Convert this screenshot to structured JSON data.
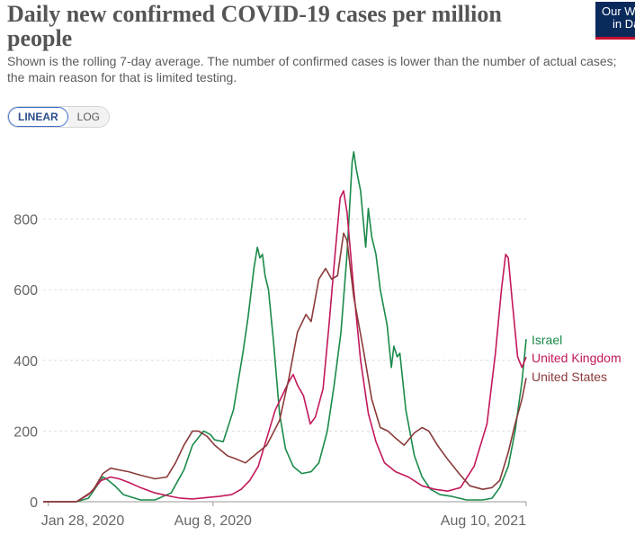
{
  "title": "Daily new confirmed COVID-19 cases per million people",
  "subtitle": "Shown is the rolling 7-day average. The number of confirmed cases is lower than the number of actual cases; the main reason for that is limited testing.",
  "logo": {
    "line1": "Our World",
    "line2": "in Data",
    "color": "#0a2a5c",
    "accent": "#c8102e"
  },
  "scale_toggle": {
    "linear_label": "LINEAR",
    "log_label": "LOG",
    "selected": "LINEAR"
  },
  "chart_data": {
    "type": "line",
    "title": "Daily new confirmed COVID-19 cases per million people",
    "ylim": [
      0,
      1000
    ],
    "y_ticks": [
      0,
      200,
      400,
      600,
      800
    ],
    "y_tick_labels": [
      "0",
      "200",
      "400",
      "600",
      "800"
    ],
    "x_ticks": [
      {
        "x": "2020-01-28",
        "label": "Jan 28, 2020"
      },
      {
        "x": "2020-08-08",
        "label": "Aug 8, 2020"
      },
      {
        "x": "2021-08-10",
        "label": "Aug 10, 2021"
      }
    ],
    "x_range": [
      "2020-01-22",
      "2021-08-10"
    ],
    "grid": "horizontal dashed",
    "legend": "right, inline labels at line ends",
    "series": [
      {
        "name": "Israel",
        "color": "#1a8a4a",
        "points": [
          [
            "2020-01-22",
            0
          ],
          [
            "2020-03-01",
            0
          ],
          [
            "2020-03-15",
            10
          ],
          [
            "2020-03-25",
            45
          ],
          [
            "2020-04-01",
            70
          ],
          [
            "2020-04-05",
            65
          ],
          [
            "2020-04-15",
            45
          ],
          [
            "2020-04-25",
            20
          ],
          [
            "2020-05-15",
            5
          ],
          [
            "2020-06-01",
            5
          ],
          [
            "2020-06-20",
            25
          ],
          [
            "2020-07-05",
            90
          ],
          [
            "2020-07-15",
            160
          ],
          [
            "2020-07-28",
            200
          ],
          [
            "2020-08-05",
            190
          ],
          [
            "2020-08-10",
            175
          ],
          [
            "2020-08-20",
            170
          ],
          [
            "2020-09-01",
            260
          ],
          [
            "2020-09-12",
            420
          ],
          [
            "2020-09-18",
            520
          ],
          [
            "2020-09-25",
            660
          ],
          [
            "2020-09-29",
            720
          ],
          [
            "2020-10-02",
            690
          ],
          [
            "2020-10-05",
            700
          ],
          [
            "2020-10-08",
            640
          ],
          [
            "2020-10-12",
            600
          ],
          [
            "2020-10-18",
            450
          ],
          [
            "2020-10-25",
            250
          ],
          [
            "2020-11-01",
            150
          ],
          [
            "2020-11-10",
            100
          ],
          [
            "2020-11-20",
            80
          ],
          [
            "2020-12-01",
            85
          ],
          [
            "2020-12-10",
            110
          ],
          [
            "2020-12-20",
            200
          ],
          [
            "2020-12-28",
            330
          ],
          [
            "2021-01-05",
            480
          ],
          [
            "2021-01-12",
            700
          ],
          [
            "2021-01-18",
            960
          ],
          [
            "2021-01-20",
            990
          ],
          [
            "2021-01-23",
            940
          ],
          [
            "2021-01-28",
            880
          ],
          [
            "2021-02-03",
            720
          ],
          [
            "2021-02-06",
            830
          ],
          [
            "2021-02-10",
            750
          ],
          [
            "2021-02-15",
            700
          ],
          [
            "2021-02-20",
            600
          ],
          [
            "2021-02-28",
            500
          ],
          [
            "2021-03-05",
            380
          ],
          [
            "2021-03-08",
            440
          ],
          [
            "2021-03-12",
            410
          ],
          [
            "2021-03-15",
            420
          ],
          [
            "2021-03-22",
            260
          ],
          [
            "2021-04-01",
            130
          ],
          [
            "2021-04-10",
            70
          ],
          [
            "2021-04-20",
            35
          ],
          [
            "2021-05-01",
            20
          ],
          [
            "2021-05-15",
            15
          ],
          [
            "2021-06-01",
            5
          ],
          [
            "2021-06-20",
            5
          ],
          [
            "2021-07-01",
            10
          ],
          [
            "2021-07-10",
            40
          ],
          [
            "2021-07-20",
            100
          ],
          [
            "2021-07-28",
            200
          ],
          [
            "2021-08-05",
            340
          ],
          [
            "2021-08-10",
            460
          ]
        ]
      },
      {
        "name": "United Kingdom",
        "color": "#c2185b",
        "points": [
          [
            "2020-01-22",
            0
          ],
          [
            "2020-03-01",
            0
          ],
          [
            "2020-03-15",
            20
          ],
          [
            "2020-03-30",
            60
          ],
          [
            "2020-04-10",
            70
          ],
          [
            "2020-04-20",
            65
          ],
          [
            "2020-05-01",
            55
          ],
          [
            "2020-05-15",
            40
          ],
          [
            "2020-06-01",
            25
          ],
          [
            "2020-06-20",
            15
          ],
          [
            "2020-07-01",
            10
          ],
          [
            "2020-07-15",
            8
          ],
          [
            "2020-08-01",
            12
          ],
          [
            "2020-08-15",
            15
          ],
          [
            "2020-08-30",
            20
          ],
          [
            "2020-09-10",
            35
          ],
          [
            "2020-09-20",
            60
          ],
          [
            "2020-09-30",
            100
          ],
          [
            "2020-10-10",
            180
          ],
          [
            "2020-10-20",
            260
          ],
          [
            "2020-10-28",
            300
          ],
          [
            "2020-11-05",
            340
          ],
          [
            "2020-11-10",
            360
          ],
          [
            "2020-11-15",
            330
          ],
          [
            "2020-11-22",
            300
          ],
          [
            "2020-11-30",
            220
          ],
          [
            "2020-12-06",
            240
          ],
          [
            "2020-12-15",
            320
          ],
          [
            "2020-12-22",
            500
          ],
          [
            "2020-12-29",
            700
          ],
          [
            "2021-01-04",
            860
          ],
          [
            "2021-01-08",
            880
          ],
          [
            "2021-01-12",
            820
          ],
          [
            "2021-01-20",
            600
          ],
          [
            "2021-01-28",
            400
          ],
          [
            "2021-02-06",
            250
          ],
          [
            "2021-02-15",
            170
          ],
          [
            "2021-02-25",
            110
          ],
          [
            "2021-03-10",
            85
          ],
          [
            "2021-03-25",
            70
          ],
          [
            "2021-04-10",
            45
          ],
          [
            "2021-04-25",
            35
          ],
          [
            "2021-05-10",
            30
          ],
          [
            "2021-05-25",
            40
          ],
          [
            "2021-06-10",
            100
          ],
          [
            "2021-06-25",
            220
          ],
          [
            "2021-07-05",
            420
          ],
          [
            "2021-07-12",
            600
          ],
          [
            "2021-07-17",
            700
          ],
          [
            "2021-07-20",
            690
          ],
          [
            "2021-07-25",
            560
          ],
          [
            "2021-07-31",
            410
          ],
          [
            "2021-08-05",
            380
          ],
          [
            "2021-08-10",
            410
          ]
        ]
      },
      {
        "name": "United States",
        "color": "#8b3a3a",
        "points": [
          [
            "2020-01-22",
            0
          ],
          [
            "2020-03-01",
            0
          ],
          [
            "2020-03-20",
            30
          ],
          [
            "2020-04-01",
            80
          ],
          [
            "2020-04-10",
            95
          ],
          [
            "2020-04-20",
            90
          ],
          [
            "2020-05-01",
            85
          ],
          [
            "2020-05-15",
            75
          ],
          [
            "2020-06-01",
            65
          ],
          [
            "2020-06-15",
            70
          ],
          [
            "2020-06-25",
            110
          ],
          [
            "2020-07-05",
            160
          ],
          [
            "2020-07-15",
            200
          ],
          [
            "2020-07-22",
            200
          ],
          [
            "2020-08-01",
            185
          ],
          [
            "2020-08-10",
            160
          ],
          [
            "2020-08-25",
            130
          ],
          [
            "2020-09-05",
            120
          ],
          [
            "2020-09-15",
            110
          ],
          [
            "2020-09-25",
            130
          ],
          [
            "2020-10-10",
            160
          ],
          [
            "2020-10-25",
            230
          ],
          [
            "2020-11-05",
            350
          ],
          [
            "2020-11-15",
            480
          ],
          [
            "2020-11-25",
            530
          ],
          [
            "2020-12-01",
            510
          ],
          [
            "2020-12-10",
            630
          ],
          [
            "2020-12-18",
            660
          ],
          [
            "2020-12-25",
            630
          ],
          [
            "2021-01-01",
            640
          ],
          [
            "2021-01-08",
            760
          ],
          [
            "2021-01-12",
            740
          ],
          [
            "2021-01-20",
            580
          ],
          [
            "2021-02-01",
            420
          ],
          [
            "2021-02-10",
            290
          ],
          [
            "2021-02-20",
            210
          ],
          [
            "2021-03-01",
            200
          ],
          [
            "2021-03-10",
            180
          ],
          [
            "2021-03-20",
            160
          ],
          [
            "2021-04-01",
            195
          ],
          [
            "2021-04-10",
            210
          ],
          [
            "2021-04-18",
            200
          ],
          [
            "2021-04-28",
            160
          ],
          [
            "2021-05-10",
            120
          ],
          [
            "2021-05-25",
            75
          ],
          [
            "2021-06-05",
            45
          ],
          [
            "2021-06-20",
            35
          ],
          [
            "2021-07-01",
            40
          ],
          [
            "2021-07-10",
            60
          ],
          [
            "2021-07-20",
            140
          ],
          [
            "2021-07-28",
            220
          ],
          [
            "2021-08-05",
            290
          ],
          [
            "2021-08-10",
            350
          ]
        ]
      }
    ]
  }
}
